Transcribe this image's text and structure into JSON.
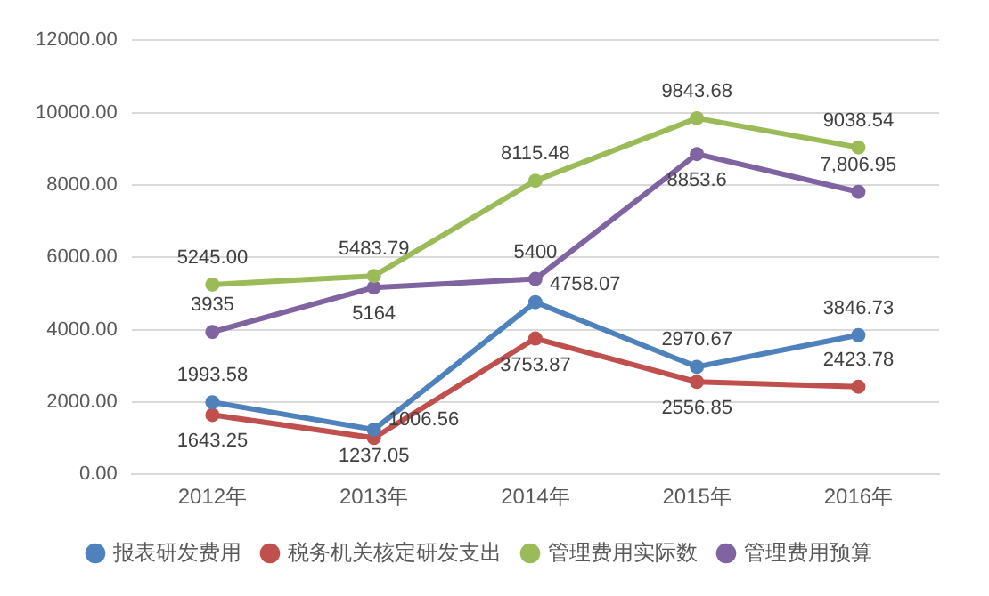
{
  "chart_data": {
    "type": "line",
    "categories": [
      "2012年",
      "2013年",
      "2014年",
      "2015年",
      "2016年"
    ],
    "series": [
      {
        "name": "报表研发费用",
        "color": "#4f81bd",
        "values": [
          1993.58,
          1237.05,
          4758.07,
          2970.67,
          3846.73
        ],
        "value_labels": [
          "1993.58",
          "1237.05",
          "4758.07",
          "2970.67",
          "3846.73"
        ]
      },
      {
        "name": "税务机关核定研发支出",
        "color": "#c0504d",
        "values": [
          1643.25,
          1006.56,
          3753.87,
          2556.85,
          2423.78
        ],
        "value_labels": [
          "1643.25",
          "1006.56",
          "3753.87",
          "2556.85",
          "2423.78"
        ]
      },
      {
        "name": "管理费用实际数",
        "color": "#9bbb59",
        "values": [
          5245.0,
          5483.79,
          8115.48,
          9843.68,
          9038.54
        ],
        "value_labels": [
          "5245.00",
          "5483.79",
          "8115.48",
          "9843.68",
          "9038.54"
        ]
      },
      {
        "name": "管理费用预算",
        "color": "#8064a2",
        "values": [
          3935,
          5164,
          5400,
          8853.6,
          7806.95
        ],
        "value_labels": [
          "3935",
          "5164",
          "5400",
          "8853.6",
          "7,806.95"
        ]
      }
    ],
    "ylim": [
      0,
      12000
    ],
    "yticks": [
      {
        "value": 0,
        "label": "0.00"
      },
      {
        "value": 2000,
        "label": "2000.00"
      },
      {
        "value": 4000,
        "label": "4000.00"
      },
      {
        "value": 6000,
        "label": "6000.00"
      },
      {
        "value": 8000,
        "label": "8000.00"
      },
      {
        "value": 10000,
        "label": "10000.00"
      },
      {
        "value": 12000,
        "label": "12000.00"
      }
    ],
    "grid": "y",
    "legend": "bottom",
    "marker": "circle",
    "line_style": "solid"
  }
}
